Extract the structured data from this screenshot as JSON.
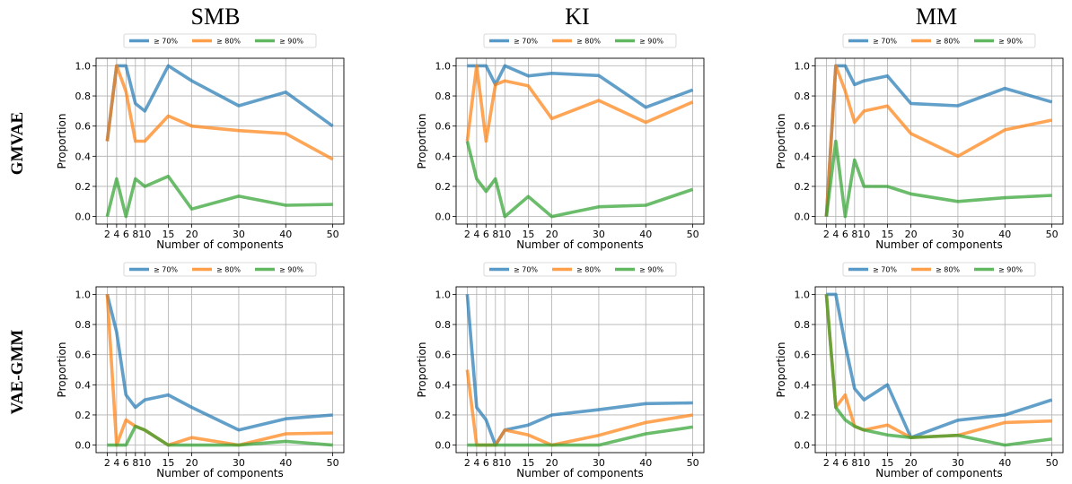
{
  "column_titles": [
    "SMB",
    "KI",
    "MM"
  ],
  "row_titles": [
    "GMVAE",
    "VAE-GMM"
  ],
  "colors": {
    "s70": "#1f77b4",
    "s80": "#ff7f0e",
    "s90": "#2ca02c"
  },
  "chart_data": [
    {
      "type": "line",
      "row": "GMVAE",
      "column": "SMB",
      "xlabel": "Number of components",
      "ylabel": "Proportion",
      "x": [
        2,
        4,
        6,
        8,
        10,
        15,
        20,
        30,
        40,
        50
      ],
      "xticks": [
        2,
        4,
        6,
        8,
        10,
        15,
        20,
        30,
        40,
        50
      ],
      "ylim": [
        0,
        1
      ],
      "yticks": [
        "0.0",
        "0.2",
        "0.4",
        "0.6",
        "0.8",
        "1.0"
      ],
      "grid": true,
      "legend": "top",
      "series": [
        {
          "name": "≥ 70%",
          "values": [
            0.5,
            1.0,
            1.0,
            0.75,
            0.7,
            1.0,
            0.9,
            0.735,
            0.825,
            0.6
          ]
        },
        {
          "name": "≥ 80%",
          "values": [
            0.5,
            1.0,
            0.83,
            0.5,
            0.5,
            0.667,
            0.6,
            0.57,
            0.55,
            0.38
          ]
        },
        {
          "name": "≥ 90%",
          "values": [
            0.0,
            0.25,
            0.0,
            0.25,
            0.2,
            0.267,
            0.05,
            0.135,
            0.075,
            0.08
          ]
        }
      ]
    },
    {
      "type": "line",
      "row": "GMVAE",
      "column": "KI",
      "xlabel": "Number of components",
      "ylabel": "Proportion",
      "x": [
        2,
        4,
        6,
        8,
        10,
        15,
        20,
        30,
        40,
        50
      ],
      "xticks": [
        2,
        4,
        6,
        8,
        10,
        15,
        20,
        30,
        40,
        50
      ],
      "ylim": [
        0,
        1
      ],
      "yticks": [
        "0.0",
        "0.2",
        "0.4",
        "0.6",
        "0.8",
        "1.0"
      ],
      "grid": true,
      "legend": "top",
      "series": [
        {
          "name": "≥ 70%",
          "values": [
            1.0,
            1.0,
            1.0,
            0.875,
            1.0,
            0.933,
            0.95,
            0.935,
            0.725,
            0.84
          ]
        },
        {
          "name": "≥ 80%",
          "values": [
            0.5,
            1.0,
            0.5,
            0.875,
            0.9,
            0.867,
            0.65,
            0.77,
            0.625,
            0.76
          ]
        },
        {
          "name": "≥ 90%",
          "values": [
            0.5,
            0.25,
            0.167,
            0.25,
            0.0,
            0.133,
            0.0,
            0.065,
            0.075,
            0.18
          ]
        }
      ]
    },
    {
      "type": "line",
      "row": "GMVAE",
      "column": "MM",
      "xlabel": "Number of components",
      "ylabel": "Proportion",
      "x": [
        2,
        4,
        6,
        8,
        10,
        15,
        20,
        30,
        40,
        50
      ],
      "xticks": [
        2,
        4,
        6,
        8,
        10,
        15,
        20,
        30,
        40,
        50
      ],
      "ylim": [
        0,
        1
      ],
      "yticks": [
        "0.0",
        "0.2",
        "0.4",
        "0.6",
        "0.8",
        "1.0"
      ],
      "grid": true,
      "legend": "top",
      "series": [
        {
          "name": "≥ 70%",
          "values": [
            0.0,
            1.0,
            1.0,
            0.875,
            0.9,
            0.933,
            0.75,
            0.735,
            0.85,
            0.76
          ]
        },
        {
          "name": "≥ 80%",
          "values": [
            0.0,
            1.0,
            0.833,
            0.625,
            0.7,
            0.733,
            0.55,
            0.4,
            0.575,
            0.64
          ]
        },
        {
          "name": "≥ 90%",
          "values": [
            0.0,
            0.5,
            0.0,
            0.375,
            0.2,
            0.2,
            0.15,
            0.1,
            0.125,
            0.14
          ]
        }
      ]
    },
    {
      "type": "line",
      "row": "VAE-GMM",
      "column": "SMB",
      "xlabel": "Number of components",
      "ylabel": "Proportion",
      "x": [
        2,
        4,
        6,
        8,
        10,
        15,
        20,
        30,
        40,
        50
      ],
      "xticks": [
        2,
        4,
        6,
        8,
        10,
        15,
        20,
        30,
        40,
        50
      ],
      "ylim": [
        0,
        1
      ],
      "yticks": [
        "0.0",
        "0.2",
        "0.4",
        "0.6",
        "0.8",
        "1.0"
      ],
      "grid": true,
      "legend": "top",
      "series": [
        {
          "name": "≥ 70%",
          "values": [
            1.0,
            0.75,
            0.333,
            0.25,
            0.3,
            0.333,
            0.25,
            0.1,
            0.175,
            0.2
          ]
        },
        {
          "name": "≥ 80%",
          "values": [
            1.0,
            0.0,
            0.167,
            0.125,
            0.1,
            0.0,
            0.05,
            0.0,
            0.075,
            0.08
          ]
        },
        {
          "name": "≥ 90%",
          "values": [
            0.0,
            0.0,
            0.0,
            0.125,
            0.1,
            0.0,
            0.0,
            0.0,
            0.025,
            0.0
          ]
        }
      ]
    },
    {
      "type": "line",
      "row": "VAE-GMM",
      "column": "KI",
      "xlabel": "Number of components",
      "ylabel": "Proportion",
      "x": [
        2,
        4,
        6,
        8,
        10,
        15,
        20,
        30,
        40,
        50
      ],
      "xticks": [
        2,
        4,
        6,
        8,
        10,
        15,
        20,
        30,
        40,
        50
      ],
      "ylim": [
        0,
        1
      ],
      "yticks": [
        "0.0",
        "0.2",
        "0.4",
        "0.6",
        "0.8",
        "1.0"
      ],
      "grid": true,
      "legend": "top",
      "series": [
        {
          "name": "≥ 70%",
          "values": [
            1.0,
            0.25,
            0.167,
            0.0,
            0.1,
            0.133,
            0.2,
            0.235,
            0.275,
            0.28
          ]
        },
        {
          "name": "≥ 80%",
          "values": [
            0.5,
            0.0,
            0.0,
            0.0,
            0.1,
            0.067,
            0.0,
            0.065,
            0.15,
            0.2
          ]
        },
        {
          "name": "≥ 90%",
          "values": [
            0.0,
            0.0,
            0.0,
            0.0,
            0.0,
            0.0,
            0.0,
            0.0,
            0.075,
            0.12
          ]
        }
      ]
    },
    {
      "type": "line",
      "row": "VAE-GMM",
      "column": "MM",
      "xlabel": "Number of components",
      "ylabel": "Proportion",
      "x": [
        2,
        4,
        6,
        8,
        10,
        15,
        20,
        30,
        40,
        50
      ],
      "xticks": [
        2,
        4,
        6,
        8,
        10,
        15,
        20,
        30,
        40,
        50
      ],
      "ylim": [
        0,
        1
      ],
      "yticks": [
        "0.0",
        "0.2",
        "0.4",
        "0.6",
        "0.8",
        "1.0"
      ],
      "grid": true,
      "legend": "top",
      "series": [
        {
          "name": "≥ 70%",
          "values": [
            1.0,
            1.0,
            0.667,
            0.375,
            0.3,
            0.4,
            0.05,
            0.165,
            0.2,
            0.3
          ]
        },
        {
          "name": "≥ 80%",
          "values": [
            1.0,
            0.25,
            0.333,
            0.125,
            0.1,
            0.133,
            0.05,
            0.065,
            0.15,
            0.16
          ]
        },
        {
          "name": "≥ 90%",
          "values": [
            1.0,
            0.25,
            0.167,
            0.125,
            0.1,
            0.067,
            0.05,
            0.065,
            0.0,
            0.04
          ]
        }
      ]
    }
  ]
}
